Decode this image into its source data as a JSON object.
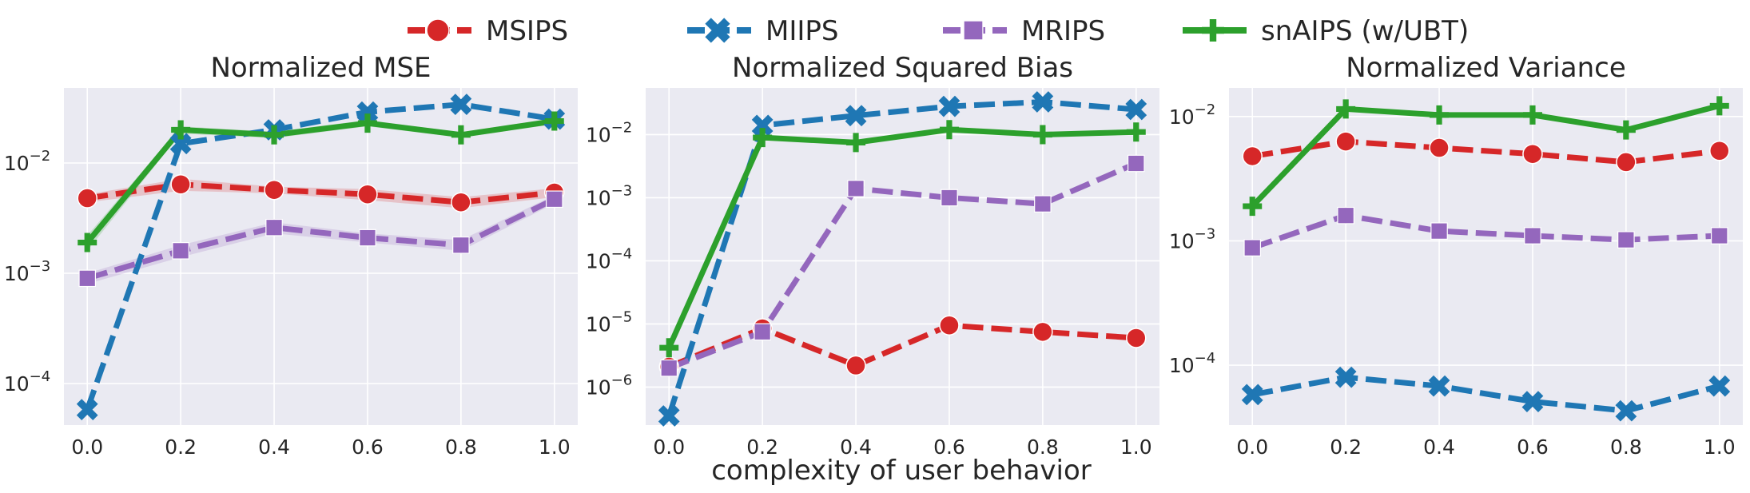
{
  "legend": {
    "placement": "top-center",
    "items": [
      {
        "label": "MSIPS",
        "color": "#d62728",
        "marker": "circle",
        "dash": "dashed"
      },
      {
        "label": "MIIPS",
        "color": "#1f77b4",
        "marker": "x",
        "dash": "dashed"
      },
      {
        "label": "MRIPS",
        "color": "#9467bd",
        "marker": "square",
        "dash": "dashed"
      },
      {
        "label": "snAIPS (w/UBT)",
        "color": "#2ca02c",
        "marker": "plus",
        "dash": "solid"
      }
    ]
  },
  "shared_xlabel": "complexity of user behavior",
  "chart_data": [
    {
      "type": "line",
      "title": "Normalized MSE",
      "x": [
        0.0,
        0.2,
        0.4,
        0.6,
        0.8,
        1.0
      ],
      "xticks": [
        "0.0",
        "0.2",
        "0.4",
        "0.6",
        "0.8",
        "1.0"
      ],
      "xlim": [
        -0.05,
        1.05
      ],
      "yscale": "log",
      "ylim": [
        4.2e-05,
        0.048
      ],
      "yticks": [
        {
          "value": 0.0001,
          "base": "10",
          "exp": "−4"
        },
        {
          "value": 0.001,
          "base": "10",
          "exp": "−3"
        },
        {
          "value": 0.01,
          "base": "10",
          "exp": "−2"
        }
      ],
      "grid": true,
      "series": [
        {
          "name": "MSIPS",
          "values": [
            0.0048,
            0.0064,
            0.0057,
            0.0052,
            0.0044,
            0.0054
          ],
          "band": [
            0.0004,
            0.0008,
            0.0004,
            0.0006,
            0.0005,
            0.0005
          ]
        },
        {
          "name": "MIIPS",
          "values": [
            5.8e-05,
            0.015,
            0.02,
            0.029,
            0.034,
            0.025
          ]
        },
        {
          "name": "MRIPS",
          "values": [
            0.0009,
            0.0016,
            0.0026,
            0.0021,
            0.0018,
            0.0047
          ],
          "band": [
            0.0001,
            0.0002,
            0.0003,
            0.0002,
            0.0002,
            0.0004
          ]
        },
        {
          "name": "snAIPS (w/UBT)",
          "values": [
            0.0019,
            0.02,
            0.018,
            0.023,
            0.018,
            0.024
          ],
          "band": [
            0.0003,
            0.0015,
            0.0012,
            0.0015,
            0.001,
            0.0015
          ]
        }
      ]
    },
    {
      "type": "line",
      "title": "Normalized Squared Bias",
      "x": [
        0.0,
        0.2,
        0.4,
        0.6,
        0.8,
        1.0
      ],
      "xticks": [
        "0.0",
        "0.2",
        "0.4",
        "0.6",
        "0.8",
        "1.0"
      ],
      "xlim": [
        -0.05,
        1.05
      ],
      "yscale": "log",
      "ylim": [
        2.5e-07,
        0.055
      ],
      "yticks": [
        {
          "value": 1e-06,
          "base": "10",
          "exp": "−6"
        },
        {
          "value": 1e-05,
          "base": "10",
          "exp": "−5"
        },
        {
          "value": 0.0001,
          "base": "10",
          "exp": "−4"
        },
        {
          "value": 0.001,
          "base": "10",
          "exp": "−3"
        },
        {
          "value": 0.01,
          "base": "10",
          "exp": "−2"
        }
      ],
      "grid": true,
      "series": [
        {
          "name": "MSIPS",
          "values": [
            2.1e-06,
            8.5e-06,
            2.2e-06,
            9.5e-06,
            7.5e-06,
            6e-06
          ]
        },
        {
          "name": "MIIPS",
          "values": [
            3.5e-07,
            0.014,
            0.02,
            0.028,
            0.033,
            0.025
          ]
        },
        {
          "name": "MRIPS",
          "values": [
            2e-06,
            7.5e-06,
            0.0014,
            0.001,
            0.0008,
            0.0035
          ]
        },
        {
          "name": "snAIPS (w/UBT)",
          "values": [
            4.2e-06,
            0.009,
            0.0075,
            0.012,
            0.01,
            0.011
          ]
        }
      ]
    },
    {
      "type": "line",
      "title": "Normalized Variance",
      "x": [
        0.0,
        0.2,
        0.4,
        0.6,
        0.8,
        1.0
      ],
      "xticks": [
        "0.0",
        "0.2",
        "0.4",
        "0.6",
        "0.8",
        "1.0"
      ],
      "xlim": [
        -0.05,
        1.05
      ],
      "yscale": "log",
      "ylim": [
        3.3e-05,
        0.017
      ],
      "yticks": [
        {
          "value": 0.0001,
          "base": "10",
          "exp": "−4"
        },
        {
          "value": 0.001,
          "base": "10",
          "exp": "−3"
        },
        {
          "value": 0.01,
          "base": "10",
          "exp": "−2"
        }
      ],
      "grid": true,
      "series": [
        {
          "name": "MSIPS",
          "values": [
            0.0048,
            0.0063,
            0.0056,
            0.005,
            0.0043,
            0.0053
          ]
        },
        {
          "name": "MIIPS",
          "values": [
            5.8e-05,
            8e-05,
            6.8e-05,
            5.1e-05,
            4.3e-05,
            6.8e-05
          ]
        },
        {
          "name": "MRIPS",
          "values": [
            0.00088,
            0.0016,
            0.0012,
            0.0011,
            0.00102,
            0.0011
          ]
        },
        {
          "name": "snAIPS (w/UBT)",
          "values": [
            0.0019,
            0.0115,
            0.0103,
            0.0103,
            0.0078,
            0.0122
          ]
        }
      ]
    }
  ]
}
